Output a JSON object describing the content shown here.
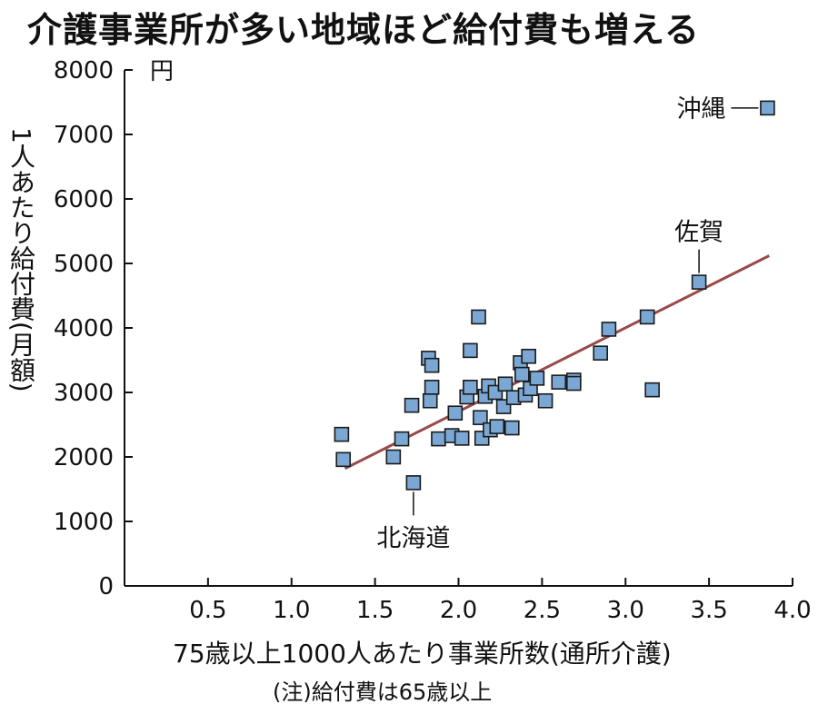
{
  "chart_data": {
    "type": "scatter",
    "title": "介護事業所が多い地域ほど給付費も増える",
    "xlabel": "75歳以上1000人あたり事業所数(通所介護)",
    "ylabel": "1人あたり給付費(月額)",
    "y_unit": "円",
    "note": "(注)給付費は65歳以上",
    "xlim": [
      0,
      4.0
    ],
    "ylim": [
      0,
      8000
    ],
    "x_ticks": [
      "0.5",
      "1.0",
      "1.5",
      "2.0",
      "2.5",
      "3.0",
      "3.5",
      "4.0"
    ],
    "y_ticks": [
      "0",
      "1000",
      "2000",
      "3000",
      "4000",
      "5000",
      "6000",
      "7000",
      "8000"
    ],
    "grid": false,
    "marker_color": "#7ba7d4",
    "trendline_color": "#9a4a4a",
    "trendline": [
      [
        1.32,
        1820
      ],
      [
        3.86,
        5120
      ]
    ],
    "points": [
      [
        1.3,
        2350
      ],
      [
        1.31,
        1960
      ],
      [
        1.61,
        2000
      ],
      [
        1.66,
        2280
      ],
      [
        1.72,
        2800
      ],
      [
        1.73,
        1600
      ],
      [
        1.82,
        3530
      ],
      [
        1.83,
        2870
      ],
      [
        1.84,
        3080
      ],
      [
        1.84,
        3420
      ],
      [
        1.88,
        2280
      ],
      [
        1.96,
        2330
      ],
      [
        1.98,
        2680
      ],
      [
        2.02,
        2290
      ],
      [
        2.05,
        2930
      ],
      [
        2.07,
        3080
      ],
      [
        2.07,
        3650
      ],
      [
        2.12,
        4170
      ],
      [
        2.13,
        2610
      ],
      [
        2.14,
        2290
      ],
      [
        2.16,
        2940
      ],
      [
        2.18,
        3100
      ],
      [
        2.19,
        2420
      ],
      [
        2.22,
        3000
      ],
      [
        2.23,
        2470
      ],
      [
        2.27,
        2780
      ],
      [
        2.28,
        3130
      ],
      [
        2.32,
        2450
      ],
      [
        2.33,
        2920
      ],
      [
        2.37,
        3460
      ],
      [
        2.38,
        3280
      ],
      [
        2.4,
        2960
      ],
      [
        2.42,
        3560
      ],
      [
        2.43,
        3060
      ],
      [
        2.47,
        3220
      ],
      [
        2.52,
        2870
      ],
      [
        2.6,
        3160
      ],
      [
        2.69,
        3190
      ],
      [
        2.69,
        3140
      ],
      [
        2.85,
        3610
      ],
      [
        2.9,
        3980
      ],
      [
        3.13,
        4170
      ],
      [
        3.16,
        3040
      ],
      [
        3.44,
        4710
      ],
      [
        3.85,
        7410
      ]
    ],
    "annotations": [
      {
        "label": "沖縄",
        "x": 3.85,
        "y": 7410
      },
      {
        "label": "佐賀",
        "x": 3.44,
        "y": 4710
      },
      {
        "label": "北海道",
        "x": 1.73,
        "y": 1600
      }
    ]
  }
}
